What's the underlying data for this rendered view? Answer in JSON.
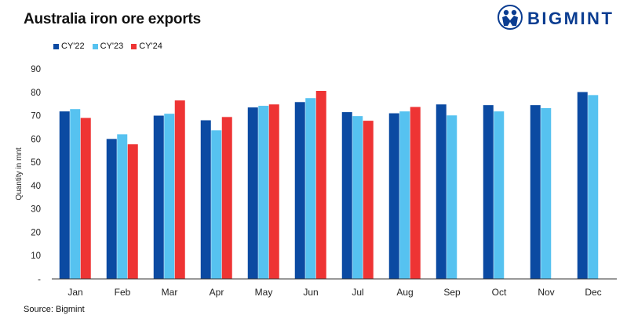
{
  "header": {
    "title": "Australia iron ore exports",
    "brand": "BIGMINT"
  },
  "source": "Source: Bigmint",
  "colors": {
    "CY'22": "#0b4aa2",
    "CY'23": "#56c2f0",
    "CY'24": "#ee3434",
    "axis": "#333333",
    "logo": "#0b3d91"
  },
  "chart_data": {
    "type": "bar",
    "title": "Australia iron ore exports",
    "xlabel": "",
    "ylabel": "Quantity in mnt",
    "ylim": [
      0,
      90
    ],
    "yticks": [
      "-",
      "10",
      "20",
      "30",
      "40",
      "50",
      "60",
      "70",
      "80",
      "90"
    ],
    "grid": false,
    "legend_position": "top-left",
    "categories": [
      "Jan",
      "Feb",
      "Mar",
      "Apr",
      "May",
      "Jun",
      "Jul",
      "Aug",
      "Sep",
      "Oct",
      "Nov",
      "Dec"
    ],
    "series": [
      {
        "name": "CY'22",
        "values": [
          71.8,
          60.0,
          70.0,
          68.0,
          73.5,
          75.8,
          71.5,
          71.0,
          74.8,
          74.5,
          74.5,
          80.1
        ]
      },
      {
        "name": "CY'23",
        "values": [
          72.8,
          62.0,
          70.8,
          63.7,
          74.2,
          77.5,
          69.8,
          71.8,
          70.1,
          71.8,
          73.2,
          78.8
        ]
      },
      {
        "name": "CY'24",
        "values": [
          69.0,
          57.7,
          76.5,
          69.4,
          74.8,
          80.6,
          67.8,
          73.7,
          null,
          null,
          null,
          null
        ]
      }
    ]
  }
}
